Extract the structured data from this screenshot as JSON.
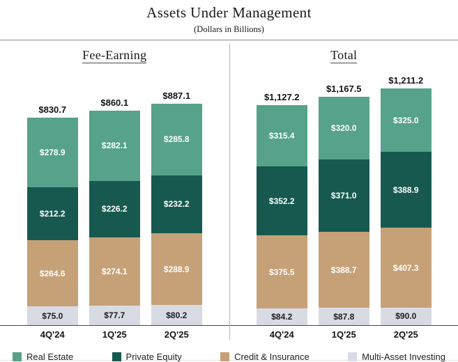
{
  "title": "Assets Under Management",
  "subtitle": "(Dollars in Billions)",
  "panels": [
    {
      "header": "Fee-Earning"
    },
    {
      "header": "Total"
    }
  ],
  "colors": {
    "real_estate": "#56A28B",
    "private_equity": "#17594F",
    "credit_insurance": "#C6A177",
    "multi_asset": "#D9DBE4",
    "segment_text_light": "#ffffff",
    "segment_text_dark": "#1c1c1c"
  },
  "legend": [
    {
      "label": "Real Estate",
      "color": "#56A28B"
    },
    {
      "label": "Private Equity",
      "color": "#17594F"
    },
    {
      "label": "Credit & Insurance",
      "color": "#C6A177"
    },
    {
      "label": "Multi-Asset Investing",
      "color": "#D9DBE4"
    }
  ],
  "chart_data": [
    {
      "type": "bar",
      "stacked": true,
      "title": "Fee-Earning",
      "categories": [
        "4Q'24",
        "1Q'25",
        "2Q'25"
      ],
      "totals": [
        830.7,
        860.1,
        887.1
      ],
      "series": [
        {
          "name": "Real Estate",
          "values": [
            278.9,
            282.1,
            285.8
          ]
        },
        {
          "name": "Private Equity",
          "values": [
            212.2,
            226.2,
            232.2
          ]
        },
        {
          "name": "Credit & Insurance",
          "values": [
            264.6,
            274.1,
            288.9
          ]
        },
        {
          "name": "Multi-Asset Investing",
          "values": [
            75.0,
            77.7,
            80.2
          ]
        }
      ],
      "value_prefix": "$",
      "legend_position": "bottom",
      "grid": false
    },
    {
      "type": "bar",
      "stacked": true,
      "title": "Total",
      "categories": [
        "4Q'24",
        "1Q'25",
        "2Q'25"
      ],
      "totals": [
        1127.2,
        1167.5,
        1211.2
      ],
      "series": [
        {
          "name": "Real Estate",
          "values": [
            315.4,
            320.0,
            325.0
          ]
        },
        {
          "name": "Private Equity",
          "values": [
            352.2,
            371.0,
            388.9
          ]
        },
        {
          "name": "Credit & Insurance",
          "values": [
            375.5,
            388.7,
            407.3
          ]
        },
        {
          "name": "Multi-Asset Investing",
          "values": [
            84.2,
            87.8,
            90.0
          ]
        }
      ],
      "value_prefix": "$",
      "legend_position": "bottom",
      "grid": false
    }
  ]
}
